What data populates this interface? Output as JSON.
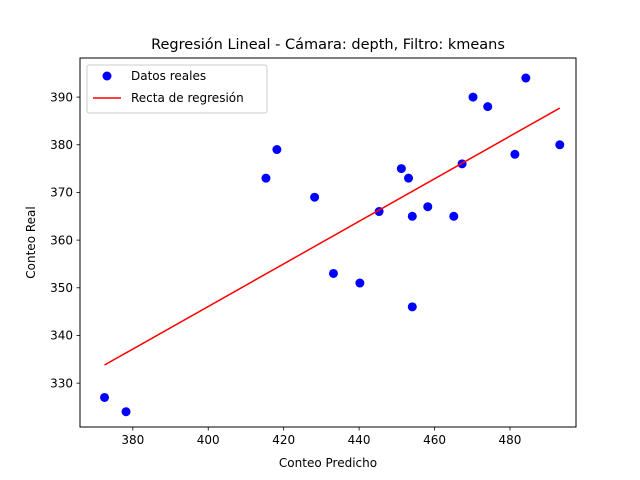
{
  "chart_data": {
    "type": "scatter",
    "title": "Regresión Lineal - Cámara: depth, Filtro: kmeans",
    "xlabel": "Conteo Predicho",
    "ylabel": "Conteo Real",
    "xlim": [
      366.0,
      497.5
    ],
    "ylim": [
      320.8,
      398.2
    ],
    "x_ticks": [
      380,
      400,
      420,
      440,
      460,
      480
    ],
    "y_ticks": [
      330,
      340,
      350,
      360,
      370,
      380,
      390
    ],
    "grid": false,
    "legend_position": "top-left",
    "series": [
      {
        "name": "Datos reales",
        "kind": "scatter",
        "color": "#0000ff",
        "points": [
          [
            372.5,
            327
          ],
          [
            378.2,
            324
          ],
          [
            415.3,
            373
          ],
          [
            418.2,
            379
          ],
          [
            428.2,
            369
          ],
          [
            433.2,
            353
          ],
          [
            440.2,
            351
          ],
          [
            445.3,
            366
          ],
          [
            451.2,
            375
          ],
          [
            453.1,
            373
          ],
          [
            454.1,
            365
          ],
          [
            454.1,
            346
          ],
          [
            458.2,
            367
          ],
          [
            465.1,
            365
          ],
          [
            467.3,
            376
          ],
          [
            470.2,
            390
          ],
          [
            474.1,
            388
          ],
          [
            481.3,
            378
          ],
          [
            484.2,
            394
          ],
          [
            493.2,
            380
          ]
        ]
      },
      {
        "name": "Recta de regresión",
        "kind": "line",
        "color": "#ff0000",
        "points": [
          [
            372.5,
            333.8
          ],
          [
            493.2,
            387.7
          ]
        ]
      }
    ]
  }
}
